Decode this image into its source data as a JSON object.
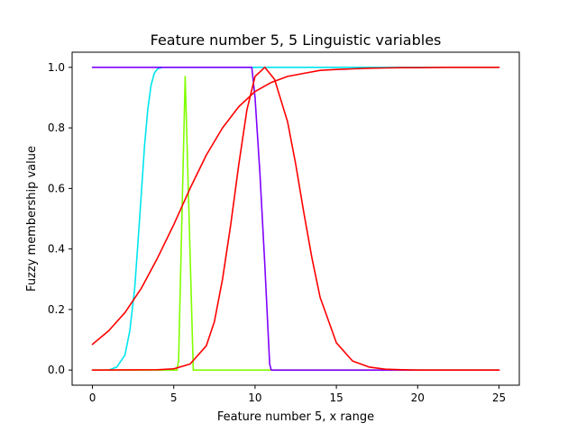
{
  "chart_data": {
    "type": "line",
    "title": "Feature number 5, 5 Linguistic variables",
    "xlabel": "Feature number 5, x range",
    "ylabel": "Fuzzy membership value",
    "xlim": [
      -1.25,
      26.25
    ],
    "ylim": [
      -0.05,
      1.05
    ],
    "xticks": [
      0,
      5,
      10,
      15,
      20,
      25
    ],
    "yticks": [
      0.0,
      0.2,
      0.4,
      0.6,
      0.8,
      1.0
    ],
    "xtick_labels": [
      "0",
      "5",
      "10",
      "15",
      "20",
      "25"
    ],
    "ytick_labels": [
      "0.0",
      "0.2",
      "0.4",
      "0.6",
      "0.8",
      "1.0"
    ],
    "grid": false,
    "legend": "none",
    "series": [
      {
        "color": "#00e5ef",
        "x": [
          0,
          1,
          1.5,
          2,
          2.3,
          2.6,
          2.8,
          3.0,
          3.2,
          3.4,
          3.6,
          3.8,
          4.0,
          4.3,
          5,
          10,
          15,
          20,
          25
        ],
        "y": [
          0.0,
          0.0,
          0.01,
          0.05,
          0.13,
          0.27,
          0.42,
          0.58,
          0.74,
          0.86,
          0.94,
          0.98,
          0.995,
          1.0,
          1.0,
          1.0,
          1.0,
          1.0,
          1.0
        ]
      },
      {
        "color": "#80ff00",
        "x": [
          0,
          5.2,
          5.3,
          5.7,
          6.2,
          25
        ],
        "y": [
          0.0,
          0.0,
          0.03,
          0.97,
          0.0,
          0.0
        ]
      },
      {
        "color": "#7f00ff",
        "x": [
          0,
          9.8,
          10.0,
          10.3,
          10.6,
          10.9,
          11,
          25
        ],
        "y": [
          1.0,
          1.0,
          0.9,
          0.65,
          0.35,
          0.02,
          0.0,
          0.0
        ]
      },
      {
        "color": "#ff0000",
        "x": [
          0,
          4,
          5,
          6,
          7,
          7.5,
          8,
          8.5,
          9,
          9.5,
          10,
          10.6,
          11.2,
          12,
          12.5,
          13,
          13.5,
          14,
          15,
          16,
          17,
          18,
          19,
          20,
          25
        ],
        "y": [
          0.0,
          0.001,
          0.004,
          0.02,
          0.08,
          0.16,
          0.3,
          0.48,
          0.68,
          0.86,
          0.97,
          1.0,
          0.96,
          0.82,
          0.68,
          0.52,
          0.37,
          0.24,
          0.09,
          0.03,
          0.01,
          0.003,
          0.001,
          0.0,
          0.0
        ]
      },
      {
        "color": "#ff0000",
        "x": [
          0,
          1,
          2,
          3,
          4,
          5,
          6,
          7,
          8,
          9,
          10,
          11,
          12,
          13,
          14,
          15,
          16,
          17,
          18,
          19,
          20,
          22,
          25
        ],
        "y": [
          0.085,
          0.13,
          0.19,
          0.27,
          0.37,
          0.48,
          0.6,
          0.71,
          0.8,
          0.87,
          0.92,
          0.95,
          0.97,
          0.98,
          0.99,
          0.993,
          0.995,
          0.997,
          0.998,
          0.999,
          0.999,
          1.0,
          1.0
        ]
      }
    ]
  }
}
